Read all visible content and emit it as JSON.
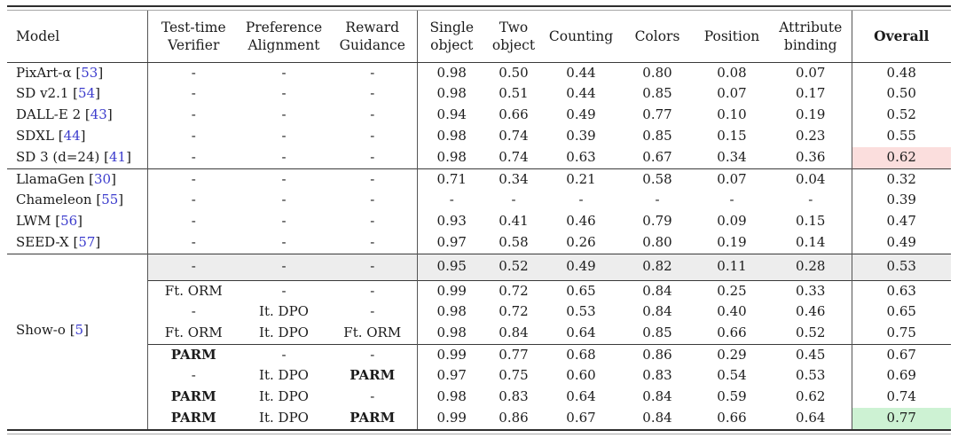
{
  "table": {
    "columns": [
      {
        "key": "model",
        "label": "Model"
      },
      {
        "key": "test_time_verifier",
        "label": "Test-time\nVerifier"
      },
      {
        "key": "preference_alignment",
        "label": "Preference\nAlignment"
      },
      {
        "key": "reward_guidance",
        "label": "Reward\nGuidance"
      },
      {
        "key": "single_object",
        "label": "Single\nobject"
      },
      {
        "key": "two_object",
        "label": "Two\nobject"
      },
      {
        "key": "counting",
        "label": "Counting"
      },
      {
        "key": "colors",
        "label": "Colors"
      },
      {
        "key": "position",
        "label": "Position"
      },
      {
        "key": "attribute_binding",
        "label": "Attribute\nbinding"
      },
      {
        "key": "overall",
        "label": "Overall",
        "bold": true
      }
    ],
    "bold_values": [
      "PARM"
    ],
    "rows": [
      {
        "model": {
          "name": "PixArt-α",
          "cite": "53"
        },
        "methods": [
          "-",
          "-",
          "-"
        ],
        "scores": [
          "0.98",
          "0.50",
          "0.44",
          "0.80",
          "0.08",
          "0.07"
        ],
        "overall": "0.48"
      },
      {
        "model": {
          "name": "SD v2.1",
          "cite": "54"
        },
        "methods": [
          "-",
          "-",
          "-"
        ],
        "scores": [
          "0.98",
          "0.51",
          "0.44",
          "0.85",
          "0.07",
          "0.17"
        ],
        "overall": "0.50"
      },
      {
        "model": {
          "name": "DALL-E 2",
          "cite": "43"
        },
        "methods": [
          "-",
          "-",
          "-"
        ],
        "scores": [
          "0.94",
          "0.66",
          "0.49",
          "0.77",
          "0.10",
          "0.19"
        ],
        "overall": "0.52"
      },
      {
        "model": {
          "name": "SDXL",
          "cite": "44"
        },
        "methods": [
          "-",
          "-",
          "-"
        ],
        "scores": [
          "0.98",
          "0.74",
          "0.39",
          "0.85",
          "0.15",
          "0.23"
        ],
        "overall": "0.55"
      },
      {
        "model": {
          "name": "SD 3 (d=24)",
          "cite": "41"
        },
        "methods": [
          "-",
          "-",
          "-"
        ],
        "scores": [
          "0.98",
          "0.74",
          "0.63",
          "0.67",
          "0.34",
          "0.36"
        ],
        "overall": "0.62",
        "overall_bg": "red"
      },
      {
        "model": {
          "name": "LlamaGen",
          "cite": "30"
        },
        "methods": [
          "-",
          "-",
          "-"
        ],
        "scores": [
          "0.71",
          "0.34",
          "0.21",
          "0.58",
          "0.07",
          "0.04"
        ],
        "overall": "0.32",
        "rule_top": "full"
      },
      {
        "model": {
          "name": "Chameleon",
          "cite": "55"
        },
        "methods": [
          "-",
          "-",
          "-"
        ],
        "scores": [
          "-",
          "-",
          "-",
          "-",
          "-",
          "-"
        ],
        "overall": "0.39"
      },
      {
        "model": {
          "name": "LWM",
          "cite": "56"
        },
        "methods": [
          "-",
          "-",
          "-"
        ],
        "scores": [
          "0.93",
          "0.41",
          "0.46",
          "0.79",
          "0.09",
          "0.15"
        ],
        "overall": "0.47"
      },
      {
        "model": {
          "name": "SEED-X",
          "cite": "57"
        },
        "methods": [
          "-",
          "-",
          "-"
        ],
        "scores": [
          "0.97",
          "0.58",
          "0.26",
          "0.80",
          "0.19",
          "0.14"
        ],
        "overall": "0.49"
      },
      {
        "model": {
          "name": "Show-o",
          "cite": "5"
        },
        "model_rowspan": 8,
        "gray": true,
        "methods": [
          "-",
          "-",
          "-"
        ],
        "scores": [
          "0.95",
          "0.52",
          "0.49",
          "0.82",
          "0.11",
          "0.28"
        ],
        "overall": "0.53",
        "rule_top": "full"
      },
      {
        "methods": [
          "Ft. ORM",
          "-",
          "-"
        ],
        "scores": [
          "0.99",
          "0.72",
          "0.65",
          "0.84",
          "0.25",
          "0.33"
        ],
        "overall": "0.63",
        "rule_top": "partial"
      },
      {
        "methods": [
          "-",
          "It. DPO",
          "-"
        ],
        "scores": [
          "0.98",
          "0.72",
          "0.53",
          "0.84",
          "0.40",
          "0.46"
        ],
        "overall": "0.65"
      },
      {
        "methods": [
          "Ft. ORM",
          "It. DPO",
          "Ft. ORM"
        ],
        "scores": [
          "0.98",
          "0.84",
          "0.64",
          "0.85",
          "0.66",
          "0.52"
        ],
        "overall": "0.75"
      },
      {
        "methods": [
          "PARM",
          "-",
          "-"
        ],
        "scores": [
          "0.99",
          "0.77",
          "0.68",
          "0.86",
          "0.29",
          "0.45"
        ],
        "overall": "0.67",
        "rule_top": "partial"
      },
      {
        "methods": [
          "-",
          "It. DPO",
          "PARM"
        ],
        "scores": [
          "0.97",
          "0.75",
          "0.60",
          "0.83",
          "0.54",
          "0.53"
        ],
        "overall": "0.69"
      },
      {
        "methods": [
          "PARM",
          "It. DPO",
          "-"
        ],
        "scores": [
          "0.98",
          "0.83",
          "0.64",
          "0.84",
          "0.59",
          "0.62"
        ],
        "overall": "0.74"
      },
      {
        "methods": [
          "PARM",
          "It. DPO",
          "PARM"
        ],
        "scores": [
          "0.99",
          "0.86",
          "0.67",
          "0.84",
          "0.66",
          "0.64"
        ],
        "overall": "0.77",
        "overall_bg": "green"
      }
    ]
  },
  "colors": {
    "citation_link": "#3c3ccd",
    "highlight_red": "#fbdedd",
    "highlight_green": "#cdf2d3",
    "row_highlight_gray": "#ededed",
    "rule_dark": "#2e2e2e",
    "rule_light": "#a6a6a6"
  }
}
